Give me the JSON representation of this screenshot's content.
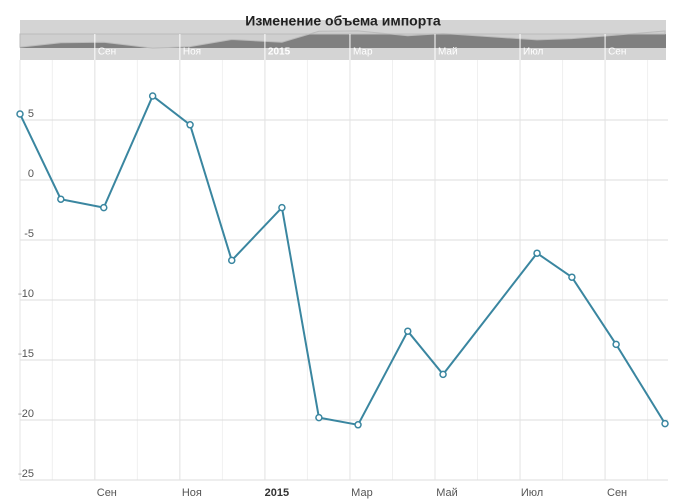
{
  "chart_data": {
    "type": "line",
    "title": "Изменение объема импорта",
    "x": [
      -1.76,
      -0.8,
      0.21,
      1.36,
      2.24,
      3.22,
      4.4,
      5.27,
      6.19,
      7.36,
      8.19,
      10.4,
      11.22,
      12.26,
      13.41
    ],
    "series": [
      {
        "color": "#3a86a0",
        "values": [
          5.5,
          -1.6,
          -2.3,
          7,
          4.6,
          -6.7,
          -2.3,
          -19.8,
          -20.4,
          -12.6,
          -16.2,
          -6.1,
          -8.1,
          -13.7,
          -20.3
        ]
      }
    ],
    "xlim": [
      -1.76,
      13.48
    ],
    "xticks": [
      {
        "value": 0,
        "label": "Сен"
      },
      {
        "value": 2,
        "label": "Ноя"
      },
      {
        "value": 4,
        "label": "2015"
      },
      {
        "value": 6,
        "label": "Мар"
      },
      {
        "value": 8,
        "label": "Май"
      },
      {
        "value": 10,
        "label": "Июл"
      },
      {
        "value": 12,
        "label": "Сен"
      }
    ],
    "ylim": [
      -25,
      10
    ],
    "yticks": [
      5,
      0,
      -5,
      -10,
      -15,
      -20,
      -25
    ],
    "grid": true
  }
}
